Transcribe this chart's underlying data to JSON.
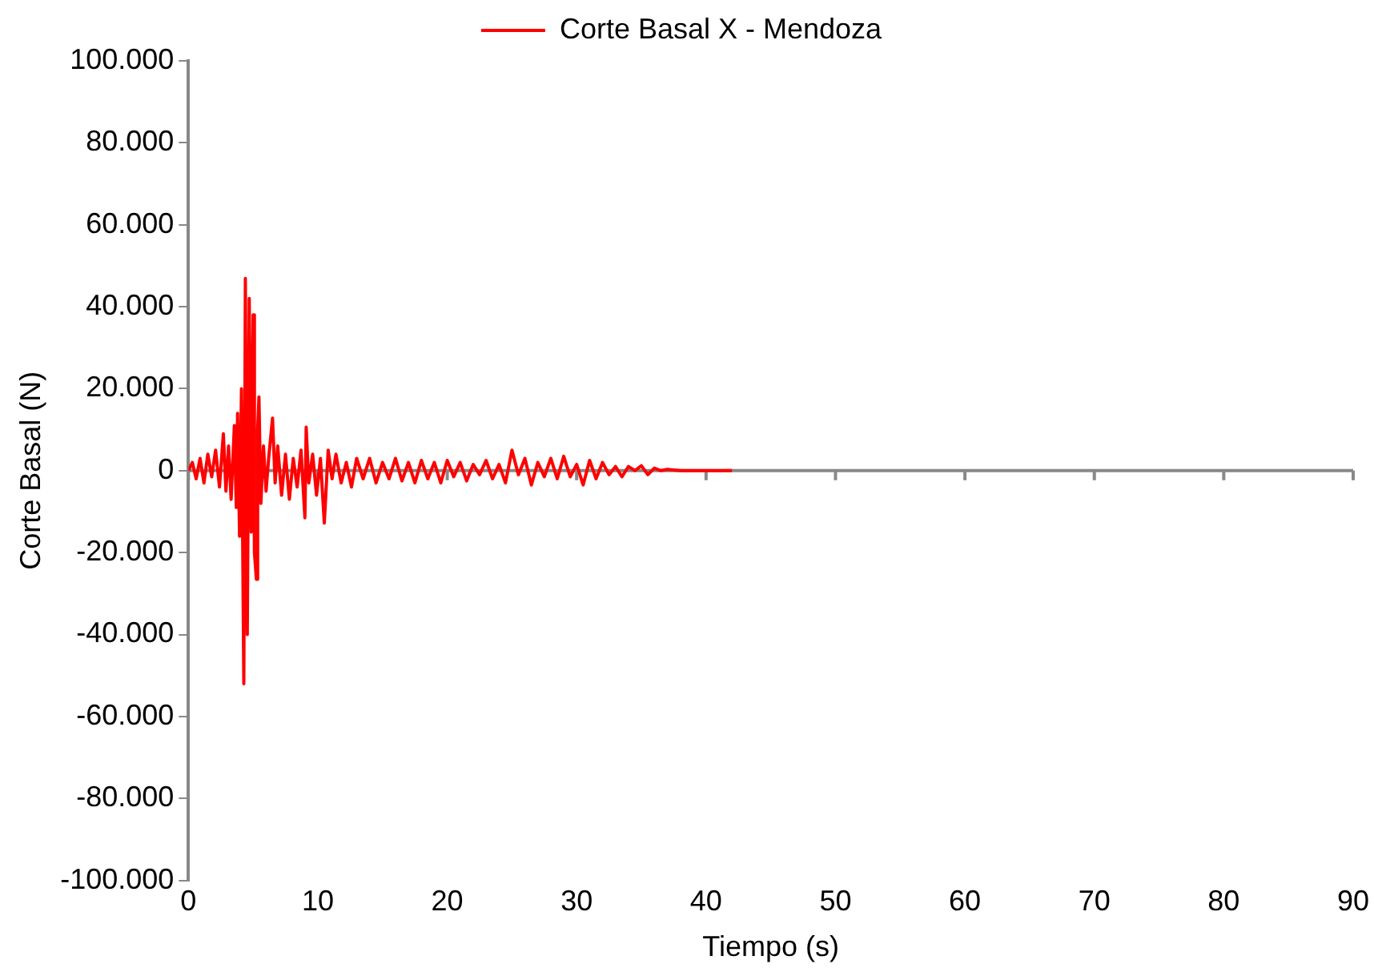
{
  "chart_data": {
    "type": "line",
    "xlabel": "Tiempo (s)",
    "ylabel": "Corte Basal (N)",
    "legend": "top",
    "grid": false,
    "marker": "none",
    "ref_lines": [
      {
        "axis": "y",
        "value": 0,
        "color": "#888888"
      }
    ],
    "xlim": [
      0,
      90
    ],
    "xticks": [
      0,
      10,
      20,
      30,
      40,
      50,
      60,
      70,
      80,
      90
    ],
    "ylim": [
      -100000,
      100000
    ],
    "yticks": [
      {
        "value": -100000,
        "label": "-100.000"
      },
      {
        "value": -80000,
        "label": "-80.000"
      },
      {
        "value": -60000,
        "label": "-60.000"
      },
      {
        "value": -40000,
        "label": "-40.000"
      },
      {
        "value": -20000,
        "label": "-20.000"
      },
      {
        "value": 0,
        "label": "0"
      },
      {
        "value": 20000,
        "label": "20.000"
      },
      {
        "value": 40000,
        "label": "40.000"
      },
      {
        "value": 60000,
        "label": "60.000"
      },
      {
        "value": 80000,
        "label": "80.000"
      },
      {
        "value": 100000,
        "label": "100.000"
      }
    ],
    "series": [
      {
        "name": "Corte Basal X - Mendoza",
        "color": "#ff0000",
        "x": [
          0,
          0.3,
          0.6,
          0.9,
          1.2,
          1.5,
          1.8,
          2.1,
          2.4,
          2.7,
          2.9,
          3.1,
          3.3,
          3.55,
          3.7,
          3.8,
          3.95,
          4.1,
          4.28,
          4.4,
          4.55,
          4.7,
          4.85,
          5.0,
          5.1,
          5.25,
          5.35,
          5.45,
          5.6,
          5.8,
          6.0,
          6.2,
          6.5,
          6.7,
          6.9,
          7.2,
          7.5,
          7.8,
          8.1,
          8.4,
          8.7,
          9.0,
          9.1,
          9.3,
          9.6,
          9.9,
          10.2,
          10.5,
          10.8,
          11.1,
          11.4,
          11.8,
          12.2,
          12.6,
          13.0,
          13.5,
          14.0,
          14.5,
          15.0,
          15.5,
          16.0,
          16.5,
          17.0,
          17.5,
          18.0,
          18.5,
          19.0,
          19.5,
          20.0,
          20.5,
          21.0,
          21.5,
          22.0,
          22.5,
          23.0,
          23.5,
          24.0,
          24.5,
          25.0,
          25.5,
          26.0,
          26.5,
          27.0,
          27.5,
          28.0,
          28.5,
          29.0,
          29.5,
          30.0,
          30.5,
          31.0,
          31.5,
          32.0,
          32.5,
          33.0,
          33.5,
          34.0,
          34.5,
          35.0,
          35.5,
          36.0,
          36.5,
          37.0,
          38.0,
          39.0,
          40.0,
          41.0,
          42.0
        ],
        "values": [
          0,
          2000,
          -2000,
          3000,
          -3000,
          4000,
          -1500,
          5000,
          -4000,
          9000,
          -5000,
          6000,
          -7000,
          11000,
          -9000,
          14000,
          -16000,
          20000,
          -52000,
          46900,
          -40000,
          42000,
          -15000,
          38000,
          -20000,
          -26500,
          10000,
          18000,
          -8000,
          6000,
          -5000,
          3000,
          12800,
          -3000,
          6000,
          -6000,
          4000,
          -7000,
          3000,
          -4000,
          5000,
          -11500,
          10600,
          -3000,
          4000,
          -6000,
          3000,
          -12800,
          5000,
          -2000,
          4000,
          -3000,
          2000,
          -4000,
          3000,
          -2000,
          3000,
          -3000,
          2000,
          -2000,
          3000,
          -2500,
          2000,
          -3000,
          2500,
          -2000,
          2000,
          -3000,
          2500,
          -1500,
          2000,
          -2500,
          1500,
          -1000,
          2500,
          -2000,
          1500,
          -3000,
          5000,
          -1000,
          3000,
          -3500,
          2000,
          -1500,
          3000,
          -2000,
          3500,
          -1500,
          1500,
          -3500,
          2500,
          -2000,
          2000,
          -1000,
          1000,
          -1500,
          1000,
          0,
          1200,
          -1000,
          600,
          0,
          300,
          0,
          0,
          0,
          0,
          0
        ]
      }
    ]
  }
}
